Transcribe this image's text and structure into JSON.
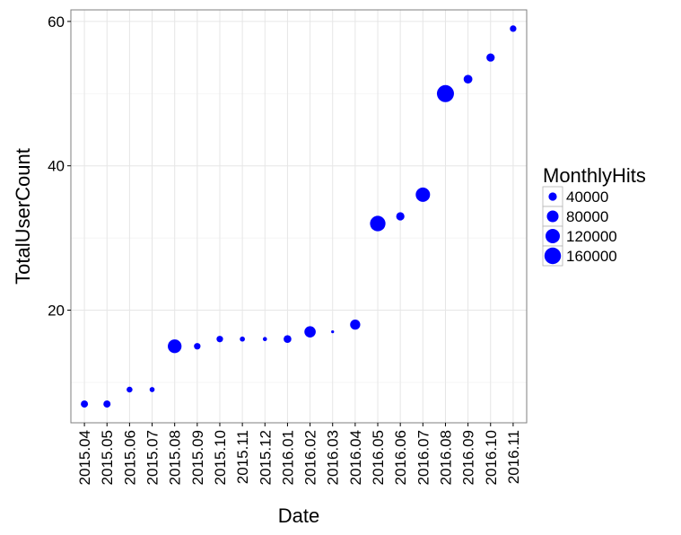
{
  "chart_data": {
    "type": "scatter",
    "xlabel": "Date",
    "ylabel": "TotalUserCount",
    "categories": [
      "2015.04",
      "2015.05",
      "2015.06",
      "2015.07",
      "2015.08",
      "2015.09",
      "2015.10",
      "2015.11",
      "2015.12",
      "2016.01",
      "2016.02",
      "2016.03",
      "2016.04",
      "2016.05",
      "2016.06",
      "2016.07",
      "2016.08",
      "2016.09",
      "2016.10",
      "2016.11"
    ],
    "y": [
      7,
      7,
      9,
      9,
      15,
      15,
      16,
      16,
      16,
      16,
      17,
      17,
      18,
      32,
      33,
      36,
      50,
      52,
      55,
      59
    ],
    "size": [
      30000,
      30000,
      20000,
      15000,
      110000,
      25000,
      25000,
      15000,
      10000,
      35000,
      75000,
      5000,
      60000,
      140000,
      40000,
      120000,
      170000,
      45000,
      40000,
      25000
    ],
    "size_var": "MonthlyHits",
    "legend": {
      "title": "MonthlyHits",
      "placement": "right",
      "items": [
        {
          "label": "40000",
          "value": 40000
        },
        {
          "label": "80000",
          "value": 80000
        },
        {
          "label": "120000",
          "value": 120000
        },
        {
          "label": "160000",
          "value": 160000
        }
      ]
    },
    "ylim": [
      4.4,
      61.6
    ],
    "yticks": [
      20,
      40,
      60
    ],
    "grid": true,
    "point_color": "#0000ff"
  }
}
